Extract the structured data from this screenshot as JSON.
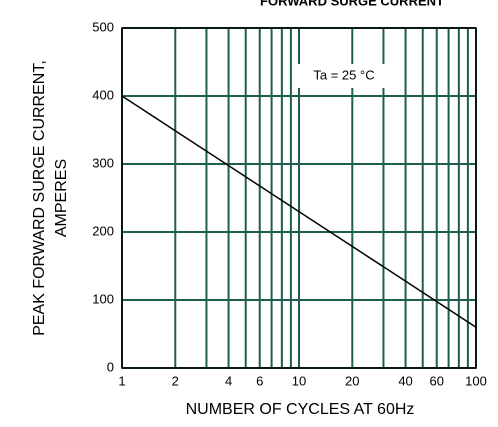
{
  "chart_data": {
    "type": "line",
    "title": "FORWARD SURGE CURRENT",
    "xlabel": "NUMBER OF CYCLES AT 60Hz",
    "ylabel": [
      "PEAK FORWARD SURGE CURRENT,",
      "AMPERES"
    ],
    "annotation": "Ta = 25 °C",
    "x": [
      1,
      100
    ],
    "series": [
      {
        "color": "#000000",
        "values": [
          400,
          60
        ]
      }
    ],
    "xscale": "log",
    "xlim": [
      1,
      100
    ],
    "xticks": [
      1,
      2,
      4,
      6,
      10,
      20,
      40,
      60,
      100
    ],
    "xminor": [
      3,
      5,
      7,
      8,
      9,
      30,
      50,
      70,
      80,
      90
    ],
    "ylim": [
      0,
      500
    ],
    "yticks": [
      0,
      100,
      200,
      300,
      400,
      500
    ],
    "grid": true,
    "grid_color": "#1e5e4e"
  }
}
